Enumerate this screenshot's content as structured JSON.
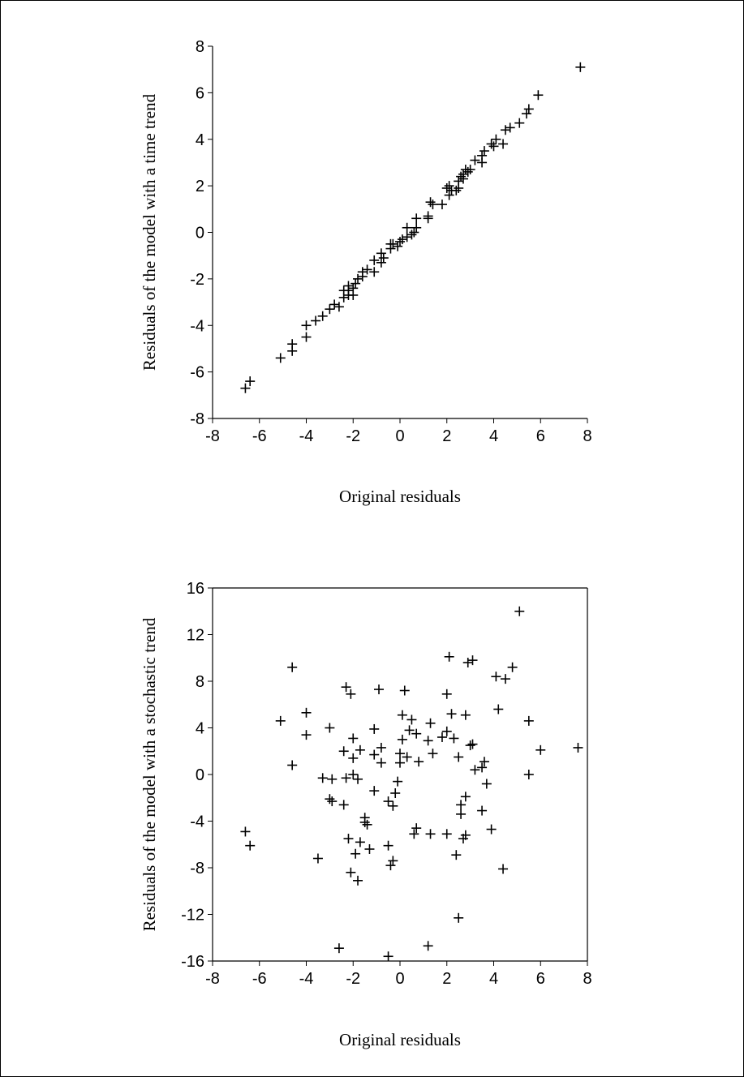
{
  "chart_data": [
    {
      "type": "scatter",
      "marker": "plus",
      "title": "",
      "xlabel": "Original residuals",
      "ylabel": "Residuals of the model with a time trend",
      "xlim": [
        -8,
        8
      ],
      "ylim": [
        -8,
        8
      ],
      "xticks": [
        -8,
        -6,
        -4,
        -2,
        0,
        2,
        4,
        6,
        8
      ],
      "yticks": [
        -8,
        -6,
        -4,
        -2,
        0,
        2,
        4,
        6,
        8
      ],
      "grid": false,
      "points": [
        [
          7.7,
          7.1
        ],
        [
          5.9,
          5.9
        ],
        [
          5.5,
          5.3
        ],
        [
          5.4,
          5.1
        ],
        [
          5.1,
          4.7
        ],
        [
          4.7,
          4.5
        ],
        [
          4.5,
          4.4
        ],
        [
          4.4,
          3.8
        ],
        [
          4.1,
          4.0
        ],
        [
          3.9,
          3.8
        ],
        [
          4.0,
          3.7
        ],
        [
          3.6,
          3.5
        ],
        [
          3.5,
          3.3
        ],
        [
          3.5,
          3.0
        ],
        [
          3.2,
          3.1
        ],
        [
          3.0,
          2.7
        ],
        [
          2.9,
          2.6
        ],
        [
          2.8,
          2.7
        ],
        [
          2.7,
          2.5
        ],
        [
          2.7,
          2.3
        ],
        [
          2.6,
          2.4
        ],
        [
          2.5,
          2.2
        ],
        [
          2.5,
          1.9
        ],
        [
          2.4,
          1.8
        ],
        [
          2.2,
          1.8
        ],
        [
          2.1,
          2.0
        ],
        [
          2.0,
          1.9
        ],
        [
          2.1,
          1.6
        ],
        [
          1.8,
          1.2
        ],
        [
          1.4,
          1.2
        ],
        [
          1.3,
          1.3
        ],
        [
          1.2,
          0.7
        ],
        [
          1.2,
          0.6
        ],
        [
          0.7,
          0.6
        ],
        [
          0.7,
          0.2
        ],
        [
          0.6,
          0.0
        ],
        [
          0.5,
          -0.1
        ],
        [
          0.3,
          0.2
        ],
        [
          0.3,
          -0.2
        ],
        [
          0.1,
          -0.3
        ],
        [
          0.0,
          -0.4
        ],
        [
          -0.1,
          -0.6
        ],
        [
          -0.3,
          -0.5
        ],
        [
          -0.4,
          -0.5
        ],
        [
          -0.4,
          -0.7
        ],
        [
          -0.8,
          -0.9
        ],
        [
          -0.7,
          -1.1
        ],
        [
          -0.8,
          -1.3
        ],
        [
          -1.1,
          -1.2
        ],
        [
          -1.1,
          -1.7
        ],
        [
          -1.4,
          -1.6
        ],
        [
          -1.6,
          -1.7
        ],
        [
          -1.6,
          -1.9
        ],
        [
          -1.8,
          -2.0
        ],
        [
          -1.9,
          -2.2
        ],
        [
          -2.0,
          -2.4
        ],
        [
          -2.0,
          -2.7
        ],
        [
          -2.2,
          -2.3
        ],
        [
          -2.2,
          -2.5
        ],
        [
          -2.2,
          -2.7
        ],
        [
          -2.4,
          -2.5
        ],
        [
          -2.4,
          -2.8
        ],
        [
          -2.6,
          -3.2
        ],
        [
          -2.8,
          -3.1
        ],
        [
          -3.0,
          -3.3
        ],
        [
          -3.3,
          -3.6
        ],
        [
          -3.6,
          -3.8
        ],
        [
          -4.0,
          -4.0
        ],
        [
          -4.0,
          -4.5
        ],
        [
          -4.6,
          -4.8
        ],
        [
          -4.6,
          -5.1
        ],
        [
          -5.1,
          -5.4
        ],
        [
          -6.4,
          -6.4
        ],
        [
          -6.6,
          -6.7
        ]
      ]
    },
    {
      "type": "scatter",
      "marker": "plus",
      "title": "",
      "xlabel": "Original residuals",
      "ylabel": "Residuals of the model with a stochastic trend",
      "xlim": [
        -8,
        8
      ],
      "ylim": [
        -16,
        16
      ],
      "xticks": [
        -8,
        -6,
        -4,
        -2,
        0,
        2,
        4,
        6,
        8
      ],
      "yticks": [
        -16,
        -12,
        -8,
        -4,
        0,
        4,
        8,
        12,
        16
      ],
      "grid": false,
      "points": [
        [
          5.1,
          14.0
        ],
        [
          2.1,
          10.1
        ],
        [
          3.1,
          9.8
        ],
        [
          2.9,
          9.6
        ],
        [
          4.8,
          9.2
        ],
        [
          -4.6,
          9.2
        ],
        [
          4.1,
          8.4
        ],
        [
          4.5,
          8.2
        ],
        [
          -2.3,
          7.5
        ],
        [
          -0.9,
          7.3
        ],
        [
          0.2,
          7.2
        ],
        [
          -2.1,
          6.9
        ],
        [
          2.0,
          6.9
        ],
        [
          4.2,
          5.6
        ],
        [
          -4.0,
          5.3
        ],
        [
          2.2,
          5.2
        ],
        [
          0.1,
          5.1
        ],
        [
          2.8,
          5.1
        ],
        [
          0.5,
          4.7
        ],
        [
          -5.1,
          4.6
        ],
        [
          5.5,
          4.6
        ],
        [
          1.3,
          4.4
        ],
        [
          -3.0,
          4.0
        ],
        [
          -1.1,
          3.9
        ],
        [
          0.4,
          3.8
        ],
        [
          2.0,
          3.7
        ],
        [
          0.7,
          3.5
        ],
        [
          -4.0,
          3.4
        ],
        [
          1.8,
          3.2
        ],
        [
          -2.0,
          3.1
        ],
        [
          2.3,
          3.1
        ],
        [
          0.1,
          3.0
        ],
        [
          1.2,
          2.9
        ],
        [
          3.1,
          2.6
        ],
        [
          3.0,
          2.5
        ],
        [
          7.6,
          2.3
        ],
        [
          -0.8,
          2.3
        ],
        [
          -1.7,
          2.1
        ],
        [
          6.0,
          2.1
        ],
        [
          -2.4,
          2.0
        ],
        [
          0.0,
          1.8
        ],
        [
          1.4,
          1.8
        ],
        [
          -1.1,
          1.7
        ],
        [
          0.3,
          1.5
        ],
        [
          2.5,
          1.5
        ],
        [
          -2.0,
          1.4
        ],
        [
          3.6,
          1.1
        ],
        [
          0.8,
          1.1
        ],
        [
          0.0,
          1.0
        ],
        [
          -0.8,
          1.0
        ],
        [
          -4.6,
          0.8
        ],
        [
          3.5,
          0.6
        ],
        [
          3.2,
          0.4
        ],
        [
          5.5,
          0.0
        ],
        [
          -2.0,
          0.0
        ],
        [
          -3.3,
          -0.3
        ],
        [
          -2.3,
          -0.3
        ],
        [
          -2.9,
          -0.4
        ],
        [
          -1.8,
          -0.4
        ],
        [
          -0.1,
          -0.6
        ],
        [
          3.7,
          -0.8
        ],
        [
          -1.1,
          -1.4
        ],
        [
          -0.2,
          -1.6
        ],
        [
          -3.0,
          -2.1
        ],
        [
          -2.9,
          -2.3
        ],
        [
          -0.5,
          -2.3
        ],
        [
          -2.4,
          -2.6
        ],
        [
          -0.3,
          -2.7
        ],
        [
          2.6,
          -2.6
        ],
        [
          2.8,
          -1.9
        ],
        [
          3.5,
          -3.1
        ],
        [
          2.6,
          -3.4
        ],
        [
          -1.5,
          -3.7
        ],
        [
          -1.5,
          -4.1
        ],
        [
          -1.4,
          -4.3
        ],
        [
          3.9,
          -4.7
        ],
        [
          0.7,
          -4.6
        ],
        [
          -6.6,
          -4.9
        ],
        [
          0.6,
          -5.1
        ],
        [
          1.3,
          -5.1
        ],
        [
          2.0,
          -5.1
        ],
        [
          2.8,
          -5.2
        ],
        [
          2.7,
          -5.5
        ],
        [
          -2.2,
          -5.5
        ],
        [
          -1.7,
          -5.8
        ],
        [
          -0.5,
          -6.1
        ],
        [
          -6.4,
          -6.1
        ],
        [
          -1.3,
          -6.4
        ],
        [
          -1.9,
          -6.8
        ],
        [
          2.4,
          -6.9
        ],
        [
          -3.5,
          -7.2
        ],
        [
          -0.3,
          -7.4
        ],
        [
          -0.4,
          -7.8
        ],
        [
          4.4,
          -8.1
        ],
        [
          -2.1,
          -8.4
        ],
        [
          -1.8,
          -9.1
        ],
        [
          2.5,
          -12.3
        ],
        [
          1.2,
          -14.7
        ],
        [
          -2.6,
          -14.9
        ],
        [
          -0.5,
          -15.6
        ]
      ]
    }
  ]
}
